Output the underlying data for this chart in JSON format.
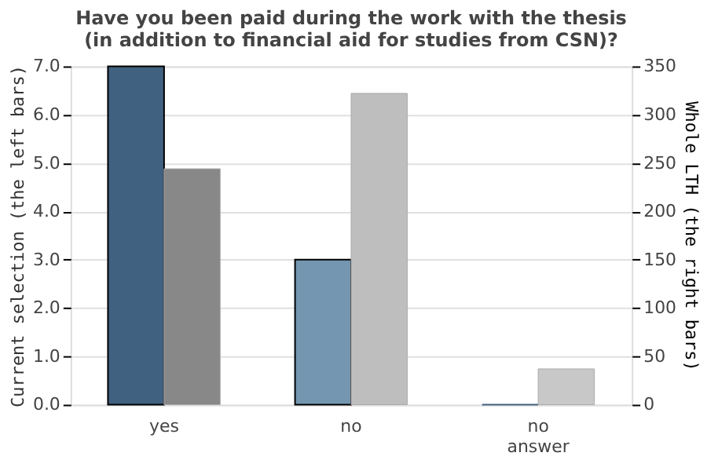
{
  "chart_data": {
    "type": "bar",
    "title": "Have you been paid during the work with the thesis\n(in addition to financial aid for studies from CSN)?",
    "categories": [
      "yes",
      "no",
      "no answer"
    ],
    "ylabel": "Current selection (the left bars)",
    "y2label": "Whole LTH (the right bars)",
    "series": [
      {
        "colors": [
          "#40617f",
          "#7496b0",
          "#40617f"
        ],
        "values": [
          7,
          3,
          0
        ]
      },
      {
        "colors": [
          "#888888",
          "#bebebe",
          "#c8c8c8"
        ],
        "values": [
          244,
          322,
          37
        ],
        "axis": "y2"
      }
    ],
    "ylim": [
      0,
      7
    ],
    "yticks": [
      {
        "value": 0,
        "label": "0.0"
      },
      {
        "value": 1,
        "label": "1.0"
      },
      {
        "value": 2,
        "label": "2.0"
      },
      {
        "value": 3,
        "label": "3.0"
      },
      {
        "value": 4,
        "label": "4.0"
      },
      {
        "value": 5,
        "label": "5.0"
      },
      {
        "value": 6,
        "label": "6.0"
      },
      {
        "value": 7,
        "label": "7.0"
      }
    ],
    "y2lim": [
      0,
      350
    ],
    "y2ticks": [
      0,
      50,
      100,
      150,
      200,
      250,
      300,
      350
    ],
    "grid": "y"
  }
}
